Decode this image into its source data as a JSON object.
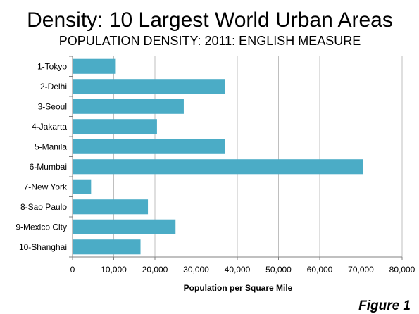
{
  "chart_data": {
    "type": "bar",
    "orientation": "horizontal",
    "title": "Density: 10 Largest World Urban Areas",
    "subtitle": "POPULATION DENSITY: 2011: ENGLISH MEASURE",
    "xlabel": "Population per Square Mile",
    "ylabel": "",
    "xlim": [
      0,
      80000
    ],
    "grid": true,
    "bar_color": "#4bacc6",
    "grid_color": "#bfbfbf",
    "categories": [
      "1-Tokyo",
      "2-Delhi",
      "3-Seoul",
      "4-Jakarta",
      "5-Manila",
      "6-Mumbai",
      "7-New York",
      "8-Sao Paulo",
      "9-Mexico City",
      "10-Shanghai"
    ],
    "values": [
      10500,
      37000,
      27000,
      20500,
      37000,
      70500,
      4500,
      18300,
      25000,
      16500
    ],
    "tick_labels": [
      "0",
      "10,000",
      "20,000",
      "30,000",
      "40,000",
      "50,000",
      "60,000",
      "70,000",
      "80,000"
    ],
    "tick_values": [
      0,
      10000,
      20000,
      30000,
      40000,
      50000,
      60000,
      70000,
      80000
    ]
  },
  "figure_label": "Figure 1"
}
